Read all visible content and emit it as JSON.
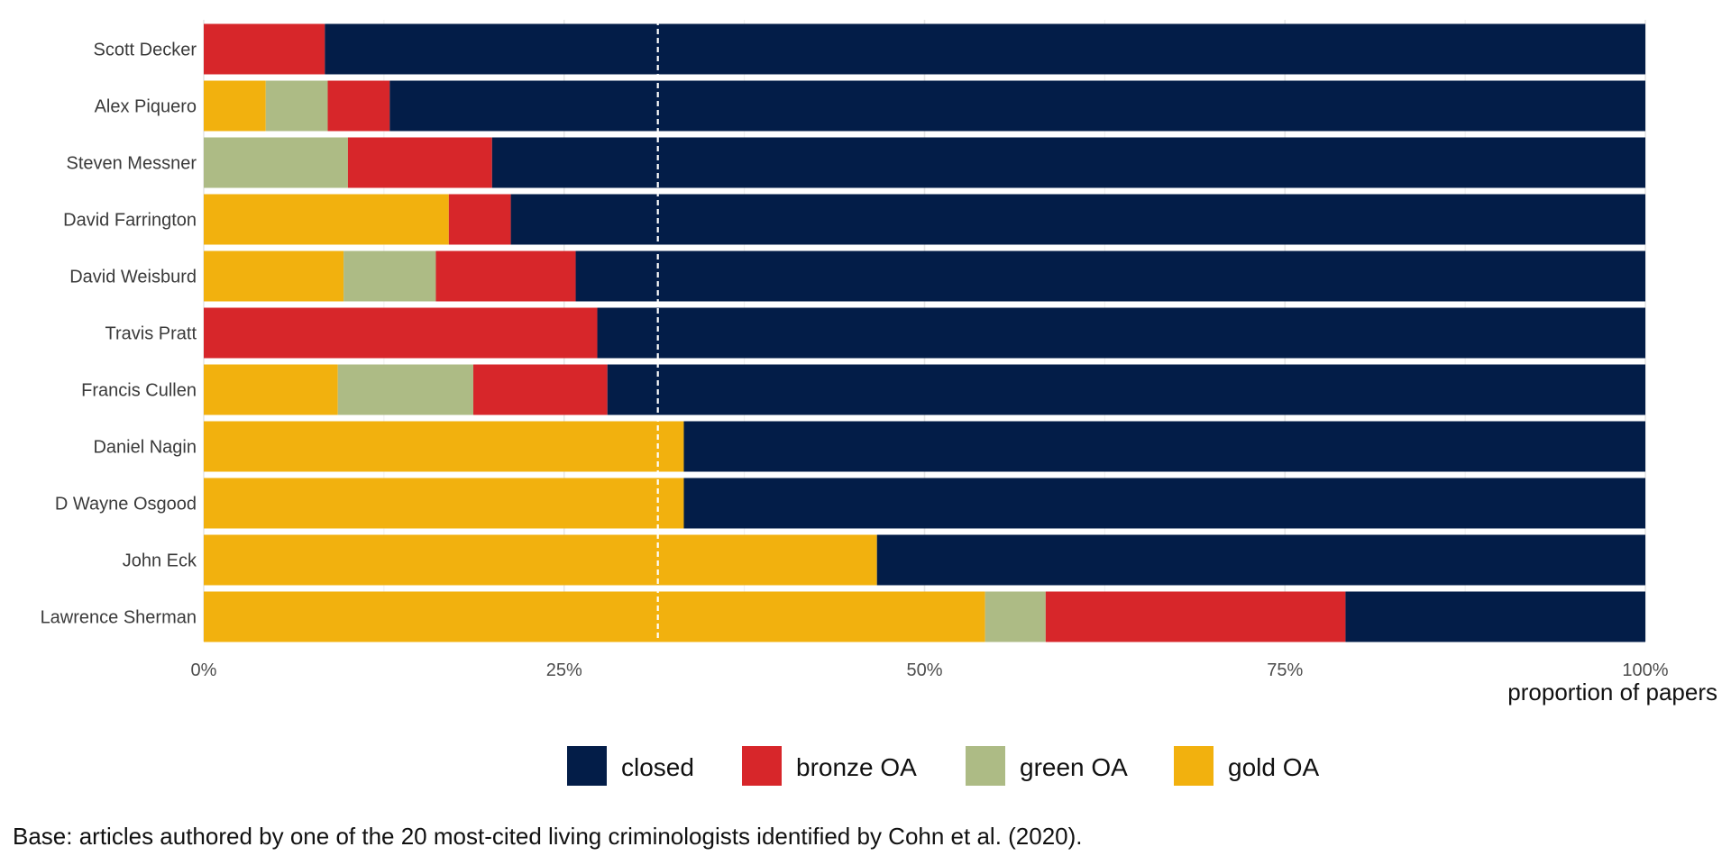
{
  "chart_data": {
    "type": "bar",
    "orientation": "horizontal",
    "stacked": true,
    "categories": [
      "Scott Decker",
      "Alex Piquero",
      "Steven Messner",
      "David Farrington",
      "David Weisburd",
      "Travis Pratt",
      "Francis Cullen",
      "Daniel Nagin",
      "D Wayne Osgood",
      "John Eck",
      "Lawrence Sherman"
    ],
    "series": [
      {
        "name": "gold OA",
        "color": "#F2B10E",
        "values": [
          0,
          0.043,
          0,
          0.17,
          0.097,
          0,
          0.093,
          0.333,
          0.333,
          0.467,
          0.542
        ]
      },
      {
        "name": "green OA",
        "color": "#ADBB85",
        "values": [
          0,
          0.043,
          0.1,
          0,
          0.064,
          0,
          0.094,
          0,
          0,
          0,
          0.042
        ]
      },
      {
        "name": "bronze OA",
        "color": "#D7262A",
        "values": [
          0.084,
          0.043,
          0.1,
          0.043,
          0.097,
          0.273,
          0.093,
          0,
          0,
          0,
          0.208
        ]
      },
      {
        "name": "closed",
        "color": "#031D48",
        "values": [
          0.916,
          0.871,
          0.8,
          0.787,
          0.742,
          0.727,
          0.72,
          0.667,
          0.667,
          0.533,
          0.208
        ]
      }
    ],
    "legend_order": [
      "closed",
      "bronze OA",
      "green OA",
      "gold OA"
    ],
    "xlim": [
      0,
      1
    ],
    "x_ticks": [
      0,
      0.25,
      0.5,
      0.75,
      1
    ],
    "x_tick_labels": [
      "0%",
      "25%",
      "50%",
      "75%",
      "100%"
    ],
    "xlabel": "proportion of papers",
    "ylabel": "",
    "reference_line": {
      "x": 0.315,
      "style": "dashed",
      "color": "#ffffff"
    },
    "grid": true,
    "legend_position": "bottom",
    "caption": "Base: articles authored by one of the 20 most-cited living criminologists identified by Cohn et al. (2020)."
  }
}
